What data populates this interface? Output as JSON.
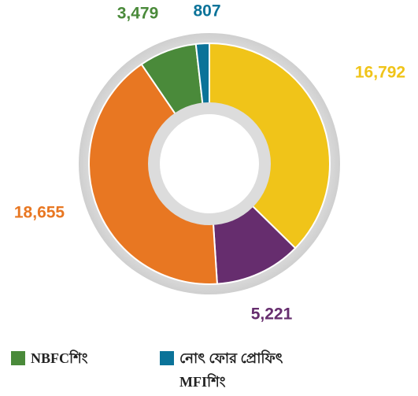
{
  "chart_data": {
    "type": "donut",
    "categories": [
      null,
      null,
      null,
      "NBFCশিং",
      "নোৎ ফোর প্ৰোফিৎ MFIশিং"
    ],
    "values": [
      16792,
      5221,
      18655,
      3479,
      807
    ],
    "value_labels": [
      "16,792",
      "5,221",
      "18,655",
      "3,479",
      "807"
    ],
    "colors": [
      "#f0c419",
      "#662d6e",
      "#e87722",
      "#4a8a3a",
      "#0b7399"
    ]
  }
}
